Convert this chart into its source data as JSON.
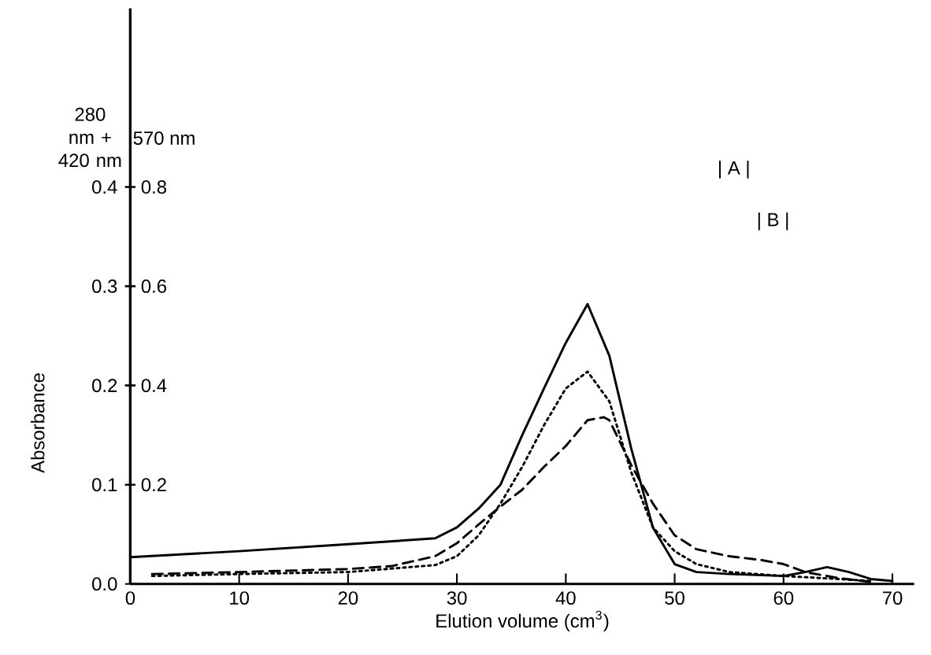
{
  "chart_data": {
    "type": "line",
    "xlabel": "Elution volume (cm$^{3}$)",
    "ylabel": "Absorbance",
    "y2label": "570 nm",
    "xlim": [
      0,
      72
    ],
    "ylim": [
      0,
      0.58
    ],
    "y2lim": [
      0,
      1.16
    ],
    "xticks": [
      0,
      10,
      20,
      30,
      40,
      50,
      60,
      70
    ],
    "yticks": [
      {
        "value": 0,
        "label": "0.0"
      },
      0.1,
      0.2,
      0.3,
      0.4
    ],
    "y2ticks": [
      0.2,
      0.4,
      0.6,
      0.8
    ],
    "grid": false,
    "marker": "none",
    "annotations": [
      "280 nm + 420 nm",
      "| A |",
      "| B |"
    ],
    "series": [
      {
        "color": "#000000",
        "line_style": "solid",
        "x": [
          0,
          10,
          20,
          28,
          30,
          32,
          34,
          36,
          38,
          40,
          42,
          44,
          46,
          48,
          50,
          52,
          55,
          60,
          62,
          64,
          66,
          68,
          70
        ],
        "values": [
          0.027,
          0.033,
          0.04,
          0.046,
          0.057,
          0.076,
          0.1,
          0.15,
          0.197,
          0.243,
          0.282,
          0.23,
          0.137,
          0.057,
          0.02,
          0.012,
          0.01,
          0.008,
          0.012,
          0.017,
          0.012,
          0.005,
          0.003
        ]
      },
      {
        "color": "#000000",
        "line_style": "dotted",
        "x": [
          2,
          10,
          20,
          28,
          30,
          32,
          34,
          36,
          38,
          40,
          42,
          44,
          46,
          48,
          50,
          52,
          55,
          60,
          65,
          68
        ],
        "values": [
          0.008,
          0.01,
          0.012,
          0.019,
          0.028,
          0.049,
          0.081,
          0.118,
          0.16,
          0.197,
          0.214,
          0.184,
          0.113,
          0.057,
          0.033,
          0.02,
          0.012,
          0.008,
          0.005,
          0.003
        ]
      },
      {
        "color": "#000000",
        "line_style": "dashed",
        "x": [
          2,
          10,
          20,
          24,
          28,
          30,
          32,
          34,
          36,
          38,
          40,
          42,
          43.5,
          44,
          46,
          48,
          50,
          52,
          55,
          58,
          60,
          62,
          65,
          68
        ],
        "values": [
          0.01,
          0.012,
          0.015,
          0.018,
          0.028,
          0.041,
          0.06,
          0.078,
          0.095,
          0.118,
          0.139,
          0.165,
          0.168,
          0.165,
          0.12,
          0.081,
          0.049,
          0.035,
          0.028,
          0.024,
          0.02,
          0.012,
          0.006,
          0.002
        ]
      }
    ]
  }
}
